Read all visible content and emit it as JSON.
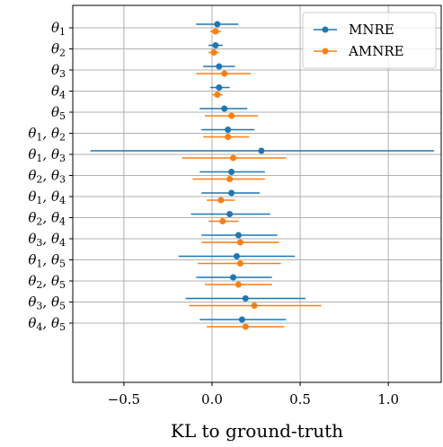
{
  "chart_data": {
    "type": "scatter",
    "orientation": "horizontal-errorbar",
    "xlabel": "KL to ground-truth",
    "xlim": [
      -0.79,
      1.3
    ],
    "xticks": [
      -0.5,
      0.0,
      0.5,
      1.0
    ],
    "xtick_labels": [
      "−0.5",
      "0.0",
      "0.5",
      "1.0"
    ],
    "grid": true,
    "legend_position": "top-right",
    "categories": [
      [
        "θ",
        "1",
        ""
      ],
      [
        "θ",
        "2",
        ""
      ],
      [
        "θ",
        "3",
        ""
      ],
      [
        "θ",
        "4",
        ""
      ],
      [
        "θ",
        "5",
        ""
      ],
      [
        "θ",
        "1",
        ", θ",
        "2"
      ],
      [
        "θ",
        "1",
        ", θ",
        "3"
      ],
      [
        "θ",
        "2",
        ", θ",
        "3"
      ],
      [
        "θ",
        "1",
        ", θ",
        "4"
      ],
      [
        "θ",
        "2",
        ", θ",
        "4"
      ],
      [
        "θ",
        "3",
        ", θ",
        "4"
      ],
      [
        "θ",
        "1",
        ", θ",
        "5"
      ],
      [
        "θ",
        "2",
        ", θ",
        "5"
      ],
      [
        "θ",
        "3",
        ", θ",
        "5"
      ],
      [
        "θ",
        "4",
        ", θ",
        "5"
      ]
    ],
    "series": [
      {
        "name": "MNRE",
        "color": "#1f77b4",
        "values": [
          0.03,
          0.02,
          0.04,
          0.04,
          0.07,
          0.09,
          0.28,
          0.11,
          0.11,
          0.1,
          0.15,
          0.14,
          0.12,
          0.19,
          0.17
        ],
        "lower": [
          -0.09,
          -0.02,
          -0.05,
          -0.01,
          -0.07,
          -0.06,
          -0.69,
          -0.07,
          -0.06,
          -0.12,
          -0.06,
          -0.19,
          -0.09,
          -0.15,
          -0.07
        ],
        "upper": [
          0.15,
          0.06,
          0.13,
          0.1,
          0.2,
          0.24,
          1.26,
          0.3,
          0.27,
          0.33,
          0.37,
          0.47,
          0.34,
          0.53,
          0.42
        ]
      },
      {
        "name": "AMNRE",
        "color": "#ff7f0e",
        "values": [
          0.02,
          0.01,
          0.07,
          0.03,
          0.11,
          0.09,
          0.12,
          0.1,
          0.05,
          0.06,
          0.16,
          0.16,
          0.15,
          0.24,
          0.19
        ],
        "lower": [
          -0.01,
          -0.02,
          -0.09,
          0.0,
          -0.04,
          -0.05,
          -0.17,
          -0.11,
          -0.03,
          -0.02,
          -0.06,
          -0.08,
          -0.04,
          -0.13,
          -0.03
        ],
        "upper": [
          0.05,
          0.04,
          0.22,
          0.06,
          0.26,
          0.21,
          0.42,
          0.3,
          0.13,
          0.15,
          0.38,
          0.39,
          0.34,
          0.62,
          0.41
        ]
      }
    ]
  }
}
